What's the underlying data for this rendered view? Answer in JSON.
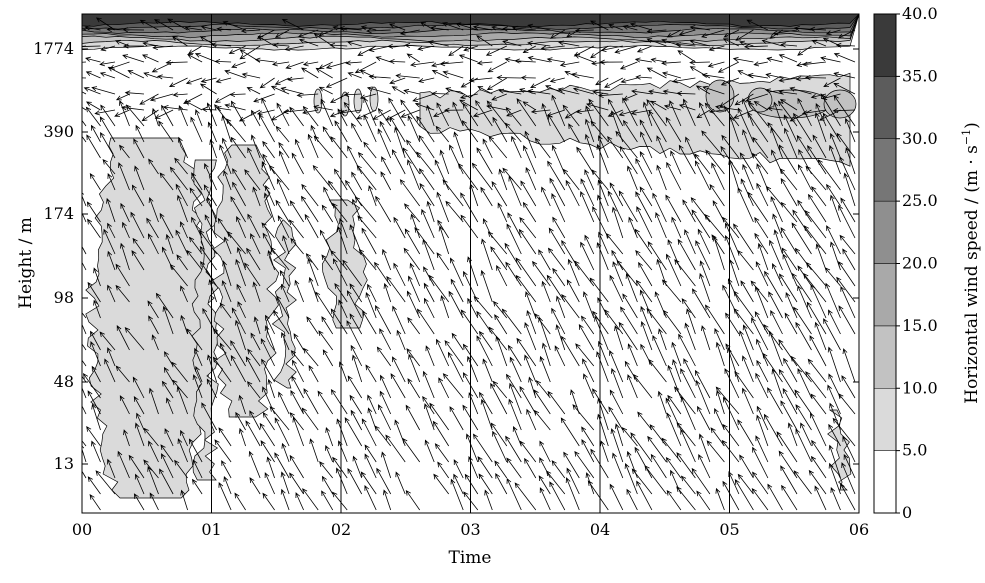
{
  "chart_data": {
    "type": "heatmap",
    "subtype": "wind-profile time-height contour with wind vectors",
    "xlabel": "Time",
    "ylabel": "Height / m",
    "x_ticks": [
      "00",
      "01",
      "02",
      "03",
      "04",
      "05",
      "06"
    ],
    "y_ticks": [
      "13",
      "48",
      "98",
      "174",
      "390",
      "1774"
    ],
    "colorbar": {
      "label_main": "Horizontal wind speed / (m · s",
      "label_exp": "−1",
      "label_close": ")",
      "ticks": [
        "0",
        "5.0",
        "10.0",
        "15.0",
        "20.0",
        "25.0",
        "30.0",
        "35.0",
        "40.0"
      ],
      "bands": [
        {
          "min": 0,
          "max": 5,
          "color": "#ffffff"
        },
        {
          "min": 5,
          "max": 10,
          "color": "#dadada"
        },
        {
          "min": 10,
          "max": 15,
          "color": "#c2c2c2"
        },
        {
          "min": 15,
          "max": 20,
          "color": "#a9a9a9"
        },
        {
          "min": 20,
          "max": 25,
          "color": "#8f8f8f"
        },
        {
          "min": 25,
          "max": 30,
          "color": "#767676"
        },
        {
          "min": 30,
          "max": 35,
          "color": "#5c5c5c"
        },
        {
          "min": 35,
          "max": 40,
          "color": "#3a3a3a"
        }
      ]
    }
  }
}
